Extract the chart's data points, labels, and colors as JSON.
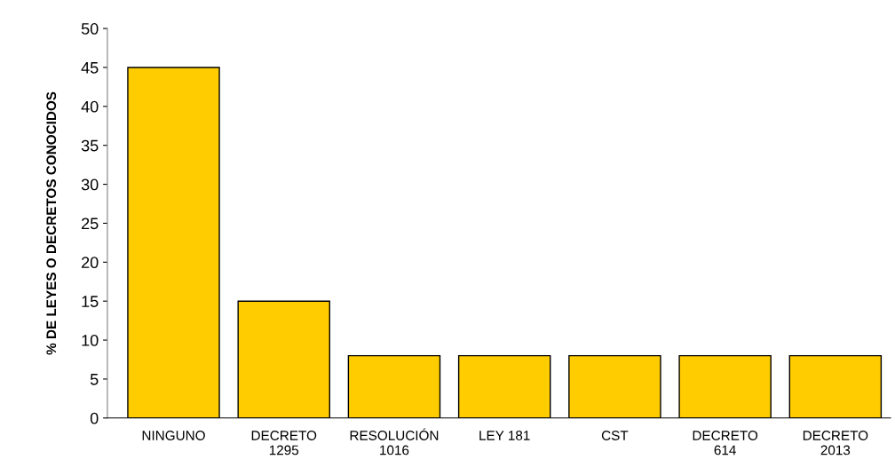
{
  "chart_data": {
    "type": "bar",
    "ylabel": "% DE LEYES O DECRETOS CONOCIDOS",
    "categories": [
      "NINGUNO",
      "DECRETO\n1295",
      "RESOLUCIÓN\n1016",
      "LEY 181",
      "CST",
      "DECRETO\n614",
      "DECRETO\n2013"
    ],
    "values": [
      45,
      15,
      8,
      8,
      8,
      8,
      8
    ],
    "color": "#ffcc00",
    "ylim": [
      0,
      50
    ],
    "yticks": [
      0,
      5,
      10,
      15,
      20,
      25,
      30,
      35,
      40,
      45,
      50
    ],
    "grid": false
  }
}
